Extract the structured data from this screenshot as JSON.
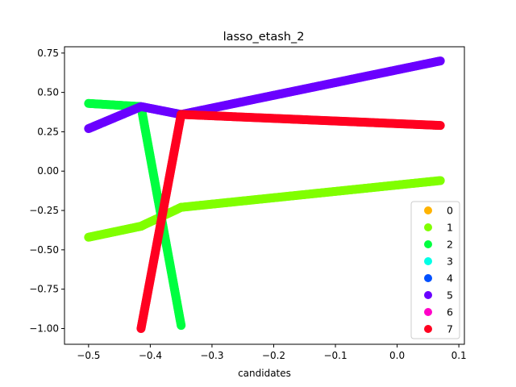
{
  "chart_data": {
    "type": "scatter",
    "title": "lasso_etash_2",
    "xlabel": "candidates",
    "ylabel": "",
    "xlim": [
      -0.539,
      0.109
    ],
    "ylim": [
      -1.1,
      0.79
    ],
    "x_ticks": [
      -0.5,
      -0.4,
      -0.3,
      -0.2,
      -0.1,
      0.0,
      0.1
    ],
    "x_tick_labels": [
      "−0.5",
      "−0.4",
      "−0.3",
      "−0.2",
      "−0.1",
      "0.0",
      "0.1"
    ],
    "y_ticks": [
      -1.0,
      -0.75,
      -0.5,
      -0.25,
      0.0,
      0.25,
      0.5,
      0.75
    ],
    "y_tick_labels": [
      "−1.00",
      "−0.75",
      "−0.50",
      "−0.25",
      "0.00",
      "0.25",
      "0.50",
      "0.75"
    ],
    "grid": false,
    "legend_position": "lower right",
    "series": [
      {
        "name": "0",
        "color": "#ffb300",
        "x": [],
        "y": []
      },
      {
        "name": "1",
        "color": "#80ff00",
        "x": [
          -0.5,
          -0.415,
          -0.35,
          0.07
        ],
        "y": [
          -0.42,
          -0.35,
          -0.23,
          -0.06
        ]
      },
      {
        "name": "2",
        "color": "#00ff40",
        "x": [
          -0.5,
          -0.415,
          -0.35
        ],
        "y": [
          0.43,
          0.41,
          -0.98
        ]
      },
      {
        "name": "3",
        "color": "#00ffe6",
        "x": [],
        "y": []
      },
      {
        "name": "4",
        "color": "#0050ff",
        "x": [],
        "y": []
      },
      {
        "name": "5",
        "color": "#6a00ff",
        "x": [
          -0.5,
          -0.415,
          -0.35,
          0.07
        ],
        "y": [
          0.27,
          0.41,
          0.36,
          0.7
        ]
      },
      {
        "name": "6",
        "color": "#ff00c8",
        "x": [],
        "y": []
      },
      {
        "name": "7",
        "color": "#ff0020",
        "x": [
          -0.415,
          -0.35,
          0.07
        ],
        "y": [
          -1.0,
          0.36,
          0.29
        ]
      }
    ]
  }
}
